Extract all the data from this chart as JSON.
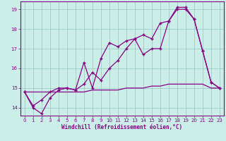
{
  "title": "",
  "xlabel": "Windchill (Refroidissement éolien,°C)",
  "ylabel": "",
  "bg_color": "#cceee8",
  "line_color": "#880088",
  "grid_color": "#99cccc",
  "ylim": [
    13.6,
    19.4
  ],
  "xlim": [
    -0.5,
    23.5
  ],
  "yticks": [
    14,
    15,
    16,
    17,
    18,
    19
  ],
  "xticks": [
    0,
    1,
    2,
    3,
    4,
    5,
    6,
    7,
    8,
    9,
    10,
    11,
    12,
    13,
    14,
    15,
    16,
    17,
    18,
    19,
    20,
    21,
    22,
    23
  ],
  "series1_x": [
    0,
    1,
    2,
    3,
    4,
    5,
    6,
    7,
    8,
    9,
    10,
    11,
    12,
    13,
    14,
    15,
    16,
    17,
    18,
    19,
    20,
    21,
    22,
    23
  ],
  "series1_y": [
    14.8,
    14.0,
    13.7,
    14.5,
    14.9,
    15.0,
    14.9,
    16.3,
    15.0,
    16.5,
    17.3,
    17.1,
    17.4,
    17.5,
    17.7,
    17.5,
    18.3,
    18.4,
    19.1,
    19.1,
    18.5,
    16.9,
    15.3,
    15.0
  ],
  "series2_x": [
    0,
    1,
    2,
    3,
    4,
    5,
    6,
    7,
    8,
    9,
    10,
    11,
    12,
    13,
    14,
    15,
    16,
    17,
    18,
    19,
    20,
    21,
    22,
    23
  ],
  "series2_y": [
    14.8,
    14.1,
    14.4,
    14.8,
    15.0,
    15.0,
    14.9,
    15.2,
    15.8,
    15.4,
    16.0,
    16.4,
    17.0,
    17.5,
    16.7,
    17.0,
    17.0,
    18.4,
    19.0,
    19.0,
    18.5,
    16.9,
    15.3,
    15.0
  ],
  "series3_x": [
    0,
    1,
    2,
    3,
    4,
    5,
    6,
    7,
    8,
    9,
    10,
    11,
    12,
    13,
    14,
    15,
    16,
    17,
    18,
    19,
    20,
    21,
    22,
    23
  ],
  "series3_y": [
    14.8,
    14.8,
    14.8,
    14.8,
    14.8,
    14.8,
    14.8,
    14.8,
    14.9,
    14.9,
    14.9,
    14.9,
    15.0,
    15.0,
    15.0,
    15.1,
    15.1,
    15.2,
    15.2,
    15.2,
    15.2,
    15.2,
    15.0,
    15.0
  ]
}
